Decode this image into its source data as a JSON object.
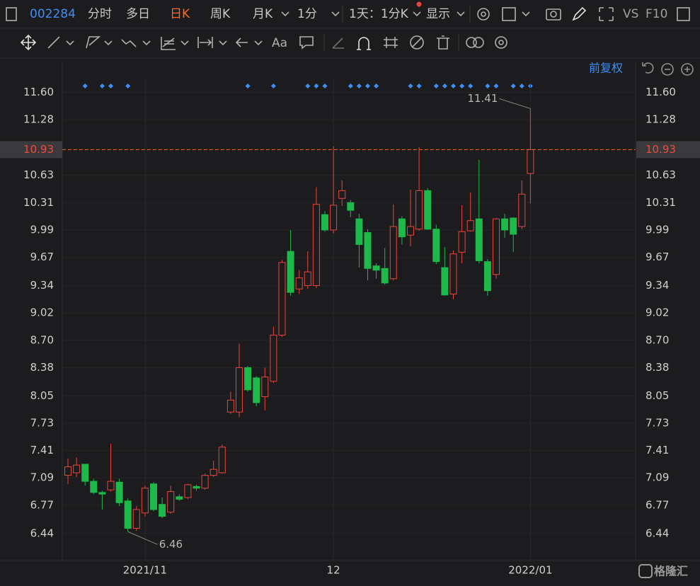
{
  "toolbar": {
    "code": "002284",
    "tabs": [
      "分时",
      "多日",
      "日K",
      "周K",
      "月K",
      "1分"
    ],
    "period": "1天：1分K",
    "display": "显示",
    "vs": "VS",
    "f10": "F10",
    "font_tool": "Aa"
  },
  "adjust": "前复权",
  "watermark": "格隆汇",
  "chart_data": {
    "type": "candlestick",
    "categories": [
      null,
      null,
      null,
      null,
      null,
      null,
      null,
      null,
      null,
      "2021/11",
      null,
      null,
      null,
      null,
      null,
      null,
      null,
      null,
      null,
      null,
      null,
      null,
      null,
      null,
      null,
      null,
      null,
      null,
      null,
      null,
      null,
      "12",
      null,
      null,
      null,
      null,
      null,
      null,
      null,
      null,
      null,
      null,
      null,
      null,
      null,
      null,
      null,
      null,
      null,
      null,
      null,
      null,
      null,
      null,
      "2022/01"
    ],
    "open": [
      7.12,
      7.15,
      7.25,
      7.05,
      6.92,
      6.95,
      7.04,
      6.82,
      6.5,
      6.68,
      7.02,
      6.78,
      6.69,
      6.87,
      6.86,
      6.99,
      6.97,
      7.12,
      7.15,
      7.86,
      7.86,
      8.38,
      8.26,
      8.04,
      8.22,
      8.76,
      9.74,
      9.3,
      9.34,
      9.34,
      10.17,
      9.99,
      10.36,
      10.31,
      10.12,
      9.96,
      9.57,
      9.54,
      9.42,
      10.12,
      9.93,
      10.0,
      10.45,
      10.0,
      9.55,
      9.24,
      9.73,
      9.98,
      10.12,
      9.62,
      9.47,
      10.12,
      10.13,
      10.03,
      10.65
    ],
    "high": [
      7.32,
      7.33,
      7.25,
      7.08,
      6.94,
      7.49,
      7.08,
      6.85,
      6.76,
      7.0,
      7.04,
      6.86,
      7.0,
      6.9,
      7.02,
      7.01,
      7.14,
      7.29,
      7.48,
      8.1,
      8.66,
      8.4,
      8.28,
      8.38,
      8.86,
      9.64,
      9.99,
      9.52,
      9.74,
      10.49,
      10.21,
      10.97,
      10.57,
      10.34,
      10.18,
      10.0,
      9.6,
      9.78,
      10.29,
      10.15,
      10.46,
      10.96,
      10.48,
      10.05,
      9.79,
      9.75,
      10.28,
      10.43,
      10.81,
      9.65,
      10.13,
      10.18,
      10.14,
      10.57,
      11.41
    ],
    "low": [
      7.02,
      7.1,
      7.0,
      6.9,
      6.72,
      6.93,
      6.76,
      6.46,
      6.47,
      6.64,
      6.7,
      6.62,
      6.67,
      6.82,
      6.84,
      6.94,
      6.95,
      7.1,
      7.14,
      7.84,
      7.8,
      8.1,
      7.93,
      7.88,
      8.2,
      8.74,
      9.22,
      9.24,
      9.3,
      9.31,
      9.97,
      9.95,
      10.27,
      10.14,
      9.55,
      9.4,
      9.42,
      9.35,
      9.4,
      9.82,
      9.8,
      9.98,
      9.99,
      9.59,
      9.22,
      9.18,
      9.6,
      9.97,
      9.6,
      9.22,
      9.42,
      9.9,
      9.73,
      10.0,
      10.3
    ],
    "close": [
      7.22,
      7.24,
      7.05,
      6.92,
      6.9,
      7.05,
      6.8,
      6.5,
      6.72,
      6.97,
      6.72,
      6.64,
      6.93,
      6.84,
      7.01,
      6.97,
      7.12,
      7.19,
      7.45,
      8.0,
      8.38,
      8.12,
      7.97,
      8.27,
      8.76,
      9.61,
      9.26,
      9.43,
      9.5,
      10.29,
      9.99,
      10.28,
      10.45,
      10.22,
      9.82,
      9.54,
      9.52,
      9.37,
      10.03,
      9.91,
      10.03,
      10.45,
      10.0,
      9.62,
      9.23,
      9.71,
      9.97,
      10.1,
      9.63,
      9.28,
      10.12,
      9.99,
      9.94,
      10.41,
      10.93
    ],
    "up_color": "#e8453c",
    "down_color": "#1fb84a",
    "current_price": 10.93,
    "ylim": [
      6.14,
      11.96
    ],
    "yticks": [
      {
        "value": 11.6,
        "label": "11.60"
      },
      11.28,
      10.63,
      10.31,
      9.99,
      9.67,
      9.34,
      9.02,
      {
        "value": 8.7,
        "label": "8.70"
      },
      8.38,
      8.05,
      7.73,
      7.41,
      7.09,
      6.77,
      6.44
    ],
    "grid": true
  }
}
